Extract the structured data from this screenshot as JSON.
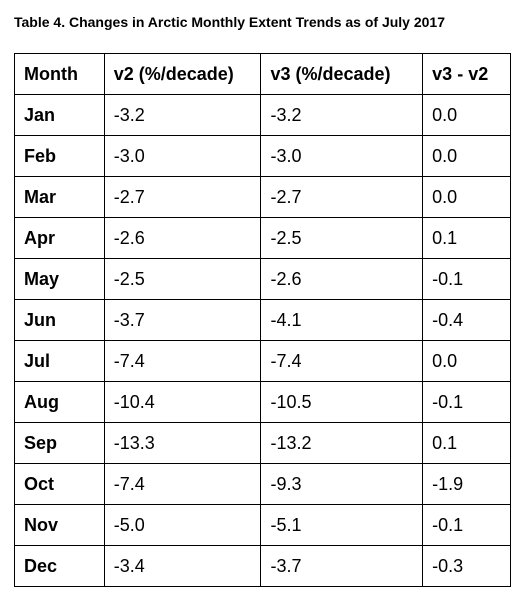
{
  "caption": "Table 4. Changes in Arctic Monthly Extent Trends as of July 2017",
  "table": {
    "headers": [
      "Month",
      "v2 (%/decade)",
      "v3 (%/decade)",
      "v3 - v2"
    ],
    "rows": [
      [
        "Jan",
        "-3.2",
        "-3.2",
        "0.0"
      ],
      [
        "Feb",
        "-3.0",
        "-3.0",
        "0.0"
      ],
      [
        "Mar",
        "-2.7",
        "-2.7",
        "0.0"
      ],
      [
        "Apr",
        "-2.6",
        "-2.5",
        "0.1"
      ],
      [
        "May",
        "-2.5",
        "-2.6",
        "-0.1"
      ],
      [
        "Jun",
        "-3.7",
        "-4.1",
        "-0.4"
      ],
      [
        "Jul",
        "-7.4",
        "-7.4",
        "0.0"
      ],
      [
        "Aug",
        "-10.4",
        "-10.5",
        "-0.1"
      ],
      [
        "Sep",
        "-13.3",
        "-13.2",
        "0.1"
      ],
      [
        "Oct",
        "-7.4",
        "-9.3",
        "-1.9"
      ],
      [
        "Nov",
        "-5.0",
        "-5.1",
        "-0.1"
      ],
      [
        "Dec",
        "-3.4",
        "-3.7",
        "-0.3"
      ]
    ]
  }
}
